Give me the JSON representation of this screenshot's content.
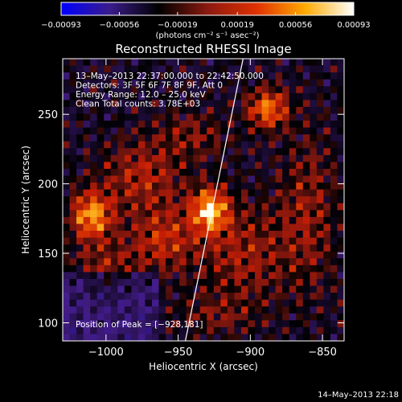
{
  "chart_data": {
    "type": "heatmap",
    "title": "Reconstructed RHESSI Image",
    "xlabel": "Heliocentric X (arcsec)",
    "ylabel": "Heliocentric Y (arcsec)",
    "xlim": [
      -1030,
      -835
    ],
    "ylim": [
      87,
      290
    ],
    "x_ticks": [
      {
        "value": -1000,
        "label": "−1000"
      },
      {
        "value": -950,
        "label": "−950"
      },
      {
        "value": -900,
        "label": "−900"
      },
      {
        "value": -850,
        "label": "−850"
      }
    ],
    "y_ticks": [
      {
        "value": 100,
        "label": "100"
      },
      {
        "value": 150,
        "label": "150"
      },
      {
        "value": 200,
        "label": "200"
      },
      {
        "value": 250,
        "label": "250"
      }
    ],
    "colorbar": {
      "range": [
        -0.00093,
        0.00093
      ],
      "ticks": [
        {
          "value": -0.00093,
          "label": "−0.00093"
        },
        {
          "value": -0.00056,
          "label": "−0.00056"
        },
        {
          "value": -0.00019,
          "label": "−0.00019"
        },
        {
          "value": 0.00019,
          "label": "0.00019"
        },
        {
          "value": 0.00056,
          "label": "0.00056"
        },
        {
          "value": 0.00093,
          "label": "0.00093"
        }
      ],
      "unit_label": "(photons cm⁻² s⁻¹ asec⁻²)",
      "colors": [
        "#0000ff",
        "#3a1c8a",
        "#000000",
        "#8a1a10",
        "#e03000",
        "#ffaa00",
        "#ffffff"
      ]
    },
    "annotations": [
      "13–May–2013 22:37:00.000 to 22:42:50.000",
      "Detectors: 3F 5F 6F 7F 8F 9F, Att 0",
      "Energy Range: 12.0 – 25.0 keV",
      "Clean     Total counts: 3.78E+03"
    ],
    "peak_label": "Position of Peak = [−928,181]",
    "peak": {
      "x": -928,
      "y": 181
    },
    "limb_line": [
      [
        -945,
        87
      ],
      [
        -905,
        290
      ]
    ],
    "sources": [
      {
        "x": -928,
        "y": 181,
        "sx": 9,
        "sy": 11,
        "amp": 1.0
      },
      {
        "x": -1010,
        "y": 177,
        "sx": 10,
        "sy": 12,
        "amp": 0.9
      },
      {
        "x": -888,
        "y": 254,
        "sx": 10,
        "sy": 10,
        "amp": 0.8
      },
      {
        "x": -975,
        "y": 205,
        "sx": 20,
        "sy": 18,
        "amp": 0.45
      },
      {
        "x": -960,
        "y": 160,
        "sx": 16,
        "sy": 16,
        "amp": 0.5
      },
      {
        "x": -905,
        "y": 150,
        "sx": 22,
        "sy": 25,
        "amp": 0.4
      },
      {
        "x": -860,
        "y": 180,
        "sx": 14,
        "sy": 40,
        "amp": 0.35
      },
      {
        "x": -940,
        "y": 235,
        "sx": 18,
        "sy": 12,
        "amp": 0.3
      },
      {
        "x": -1000,
        "y": 140,
        "sx": 16,
        "sy": 14,
        "amp": 0.35
      },
      {
        "x": -925,
        "y": 105,
        "sx": 20,
        "sy": 10,
        "amp": 0.25
      }
    ]
  },
  "footer": {
    "timestamp": "14–May–2013 22:18"
  }
}
